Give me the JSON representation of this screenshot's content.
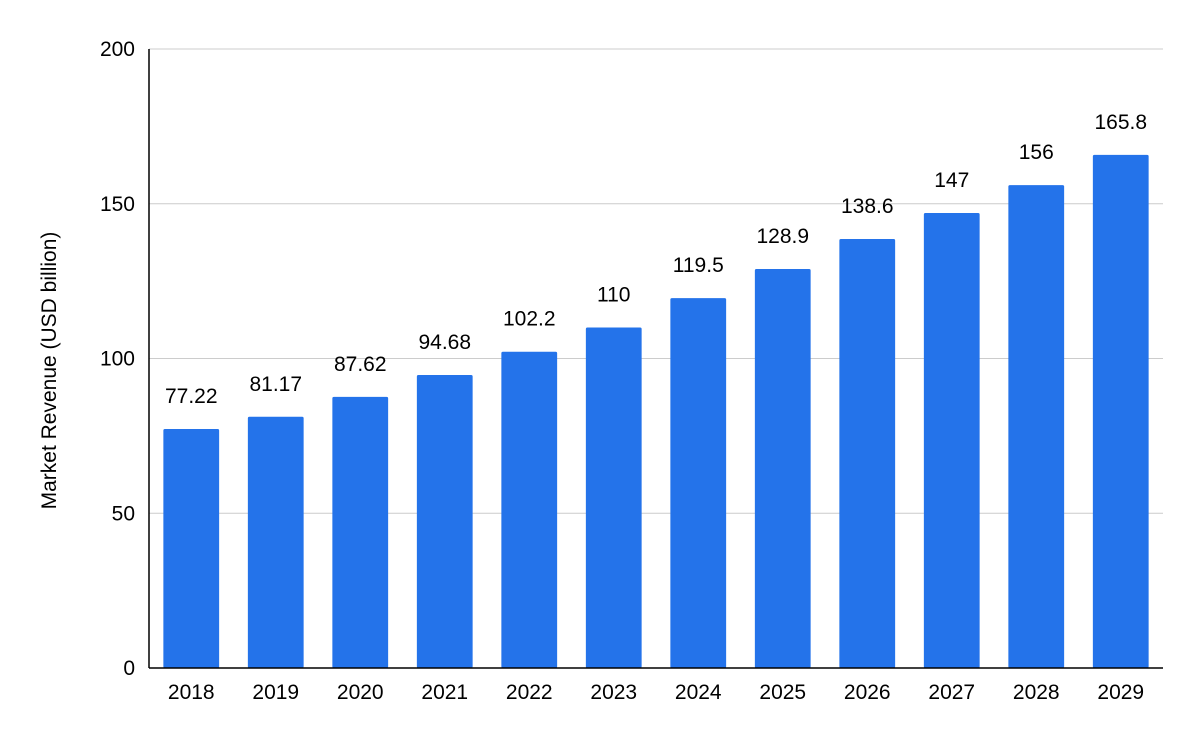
{
  "chart_data": {
    "type": "bar",
    "title": "",
    "xlabel": "",
    "ylabel": "Market Revenue (USD billion)",
    "ylim": [
      0,
      200
    ],
    "yticks": [
      0,
      50,
      100,
      150,
      200
    ],
    "grid": true,
    "legend": "none",
    "categories": [
      "2018",
      "2019",
      "2020",
      "2021",
      "2022",
      "2023",
      "2024",
      "2025",
      "2026",
      "2027",
      "2028",
      "2029"
    ],
    "values": [
      77.22,
      81.17,
      87.62,
      94.68,
      102.2,
      110,
      119.5,
      128.9,
      138.6,
      147,
      156,
      165.8
    ],
    "data_labels": [
      "77.22",
      "81.17",
      "87.62",
      "94.68",
      "102.2",
      "110",
      "119.5",
      "128.9",
      "138.6",
      "147",
      "156",
      "165.8"
    ],
    "colors": {
      "bar": "#2473EA",
      "grid": "#CCCCCC",
      "axis": "#000000"
    }
  }
}
